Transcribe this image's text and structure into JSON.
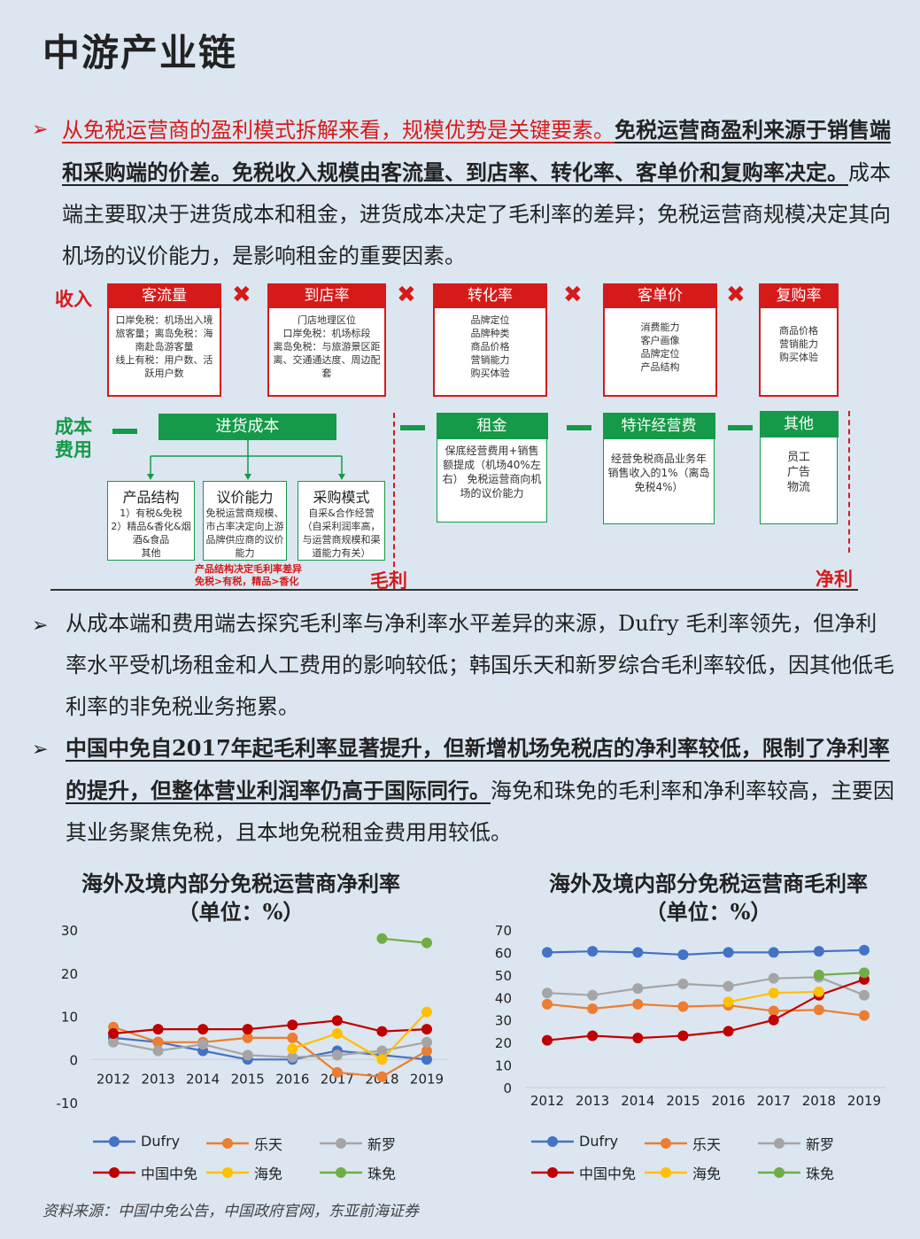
{
  "title": "中游产业链",
  "para1": {
    "red": "从免税运营商的盈利模式拆解来看，规模优势是关键要素。",
    "bold": "免税运营商盈利来源于销售端和采购端的价差。免税收入规模由客流量、到店率、转化率、客单价和复购率决定。",
    "rest": "成本端主要取决于进货成本和租金，进货成本决定了毛利率的差异；免税运营商规模决定其向机场的议价能力，是影响租金的重要因素。"
  },
  "diagram": {
    "income_label": "收入",
    "cost_label": "成本费用",
    "revenue_boxes": [
      {
        "head": "客流量",
        "body": "口岸免税：机场出入境旅客量；离岛免税：海南赴岛游客量\n线上有税：用户数、活跃用户数"
      },
      {
        "head": "到店率",
        "body": "门店地理区位\n口岸免税：机场标段\n离岛免税：与旅游景区距离、交通通达度、周边配套"
      },
      {
        "head": "转化率",
        "body": "品牌定位\n品牌种类\n商品价格\n营销能力\n购买体验"
      },
      {
        "head": "客单价",
        "body": "消费能力\n客户画像\n品牌定位\n产品结构"
      },
      {
        "head": "复购率",
        "body": "商品价格\n营销能力\n购买体验"
      }
    ],
    "purchase_cost": "进货成本",
    "sub_boxes": [
      {
        "head": "产品结构",
        "body": "1）有税&免税\n2）精品&香化&烟酒&食品\n其他"
      },
      {
        "head": "议价能力",
        "body": "免税运营商规模、市占率决定向上游品牌供应商的议价能力"
      },
      {
        "head": "采购模式",
        "body": "自采&合作经营\n（自采利润率高，与运营商规模和渠道能力有关）"
      }
    ],
    "note": "产品结构决定毛利率差异\n免税>有税，精品>香化",
    "gross_label": "毛利",
    "net_label": "净利",
    "green_boxes": [
      {
        "head": "租金",
        "body": "保底经营费用+销售额提成（机场40%左右）\n免税运营商向机场的议价能力"
      },
      {
        "head": "特许经营费",
        "body": "经营免税商品业务年销售收入的1%（离岛免税4%）"
      },
      {
        "head": "其他",
        "body": "员工\n广告\n物流"
      }
    ]
  },
  "para2": "从成本端和费用端去探究毛利率与净利率水平差异的来源，Dufry 毛利率领先，但净利率水平受机场租金和人工费用的影响较低；韩国乐天和新罗综合毛利率较低，因其他低毛利率的非免税业务拖累。",
  "para3": {
    "bold": "中国中免自2017年起毛利率显著提升，但新增机场免税店的净利率较低，限制了净利率的提升，但整体营业利润率仍高于国际同行。",
    "rest": "海免和珠免的毛利率和净利率较高，主要因其业务聚焦免税，且本地免税租金费用用较低。"
  },
  "chart_data": [
    {
      "type": "line",
      "title": "海外及境内部分免税运营商净利率",
      "subtitle": "（单位：%）",
      "categories": [
        "2012",
        "2013",
        "2014",
        "2015",
        "2016",
        "2017",
        "2018",
        "2019"
      ],
      "ylim": [
        -10,
        30
      ],
      "yticks": [
        "30",
        "20",
        "10",
        "0",
        "-10"
      ],
      "series": [
        {
          "name": "Dufry",
          "color": "#4472c4",
          "values": [
            5,
            4,
            2,
            0,
            0,
            2,
            1,
            0
          ]
        },
        {
          "name": "乐天",
          "color": "#ed7d31",
          "values": [
            7.5,
            4,
            4,
            5,
            5,
            -3,
            -4,
            2
          ]
        },
        {
          "name": "新罗",
          "color": "#a5a5a5",
          "values": [
            4,
            2,
            3.5,
            1,
            0.5,
            1,
            2,
            4
          ]
        },
        {
          "name": "中国中免",
          "color": "#c00000",
          "values": [
            6,
            7,
            7,
            7,
            8,
            9,
            6.5,
            7
          ]
        },
        {
          "name": "海免",
          "color": "#ffc000",
          "values": [
            null,
            null,
            null,
            null,
            2.5,
            6,
            0,
            11
          ]
        },
        {
          "name": "珠免",
          "color": "#70ad47",
          "values": [
            null,
            null,
            null,
            null,
            null,
            null,
            28,
            27
          ]
        }
      ]
    },
    {
      "type": "line",
      "title": "海外及境内部分免税运营商毛利率",
      "subtitle": "（单位：%）",
      "categories": [
        "2012",
        "2013",
        "2014",
        "2015",
        "2016",
        "2017",
        "2018",
        "2019"
      ],
      "ylim": [
        0,
        70
      ],
      "yticks": [
        "70",
        "60",
        "50",
        "40",
        "30",
        "20",
        "10",
        "0"
      ],
      "series": [
        {
          "name": "Dufry",
          "color": "#4472c4",
          "values": [
            60,
            60.5,
            60,
            59,
            60,
            60,
            60.5,
            61
          ]
        },
        {
          "name": "乐天",
          "color": "#ed7d31",
          "values": [
            37,
            35,
            37,
            36,
            36.5,
            34,
            34.5,
            32
          ]
        },
        {
          "name": "新罗",
          "color": "#a5a5a5",
          "values": [
            42,
            41,
            44,
            46,
            45,
            48.5,
            49,
            41
          ]
        },
        {
          "name": "中国中免",
          "color": "#c00000",
          "values": [
            21,
            23,
            22,
            23,
            25,
            30,
            41,
            48
          ]
        },
        {
          "name": "海免",
          "color": "#ffc000",
          "values": [
            null,
            null,
            null,
            null,
            38,
            42,
            42.5,
            null
          ]
        },
        {
          "name": "珠免",
          "color": "#70ad47",
          "values": [
            null,
            null,
            null,
            null,
            null,
            null,
            50,
            51
          ]
        }
      ]
    }
  ],
  "source": "资料来源：中国中免公告，中国政府官网，东亚前海证券"
}
